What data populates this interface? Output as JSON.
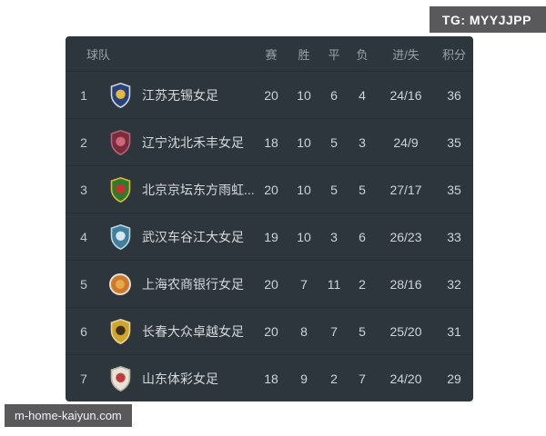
{
  "overlays": {
    "tg_label": "TG: MYYJJPP",
    "site_label": "m-home-kaiyun.com",
    "badge_background": "#59595b"
  },
  "table": {
    "headers": {
      "team": "球队",
      "played": "赛",
      "win": "胜",
      "draw": "平",
      "loss": "负",
      "goals": "进/失",
      "points": "积分"
    },
    "colors": {
      "card_background": "#2d363d",
      "row_text": "#cdd3d7",
      "header_text": "#98a1a8",
      "divider": "#262e35"
    },
    "rows": [
      {
        "rank": "1",
        "team": "江苏无锡女足",
        "played": "20",
        "win": "10",
        "draw": "6",
        "loss": "4",
        "goals": "24/16",
        "points": "36",
        "crest": {
          "shape": "shield",
          "primary": "#27427e",
          "secondary": "#e8b83a",
          "border": "#cfd6dd"
        }
      },
      {
        "rank": "2",
        "team": "辽宁沈北禾丰女足",
        "played": "18",
        "win": "10",
        "draw": "5",
        "loss": "3",
        "goals": "24/9",
        "points": "35",
        "crest": {
          "shape": "shield",
          "primary": "#7e2a3c",
          "secondary": "#c96a7c",
          "border": "#a86a74"
        }
      },
      {
        "rank": "3",
        "team": "北京京坛东方雨虹...",
        "played": "20",
        "win": "10",
        "draw": "5",
        "loss": "5",
        "goals": "27/17",
        "points": "35",
        "crest": {
          "shape": "shield",
          "primary": "#2f7a2f",
          "secondary": "#c93030",
          "border": "#d9b93a"
        }
      },
      {
        "rank": "4",
        "team": "武汉车谷江大女足",
        "played": "19",
        "win": "10",
        "draw": "3",
        "loss": "6",
        "goals": "26/23",
        "points": "33",
        "crest": {
          "shape": "shield",
          "primary": "#3f7e9e",
          "secondary": "#d7e7ee",
          "border": "#bcd6e0"
        }
      },
      {
        "rank": "5",
        "team": "上海农商银行女足",
        "played": "20",
        "win": "7",
        "draw": "11",
        "loss": "2",
        "goals": "28/16",
        "points": "32",
        "crest": {
          "shape": "circle",
          "primary": "#cf7a2a",
          "secondary": "#e8a84a",
          "border": "#e5e0d5"
        }
      },
      {
        "rank": "6",
        "team": "长春大众卓越女足",
        "played": "20",
        "win": "8",
        "draw": "7",
        "loss": "5",
        "goals": "25/20",
        "points": "31",
        "crest": {
          "shape": "shield",
          "primary": "#d1a52c",
          "secondary": "#3a2f1d",
          "border": "#e8d49a"
        }
      },
      {
        "rank": "7",
        "team": "山东体彩女足",
        "played": "18",
        "win": "9",
        "draw": "2",
        "loss": "7",
        "goals": "24/20",
        "points": "29",
        "crest": {
          "shape": "shield",
          "primary": "#e7e2d6",
          "secondary": "#c23b3b",
          "border": "#b9b2a4"
        }
      }
    ]
  }
}
